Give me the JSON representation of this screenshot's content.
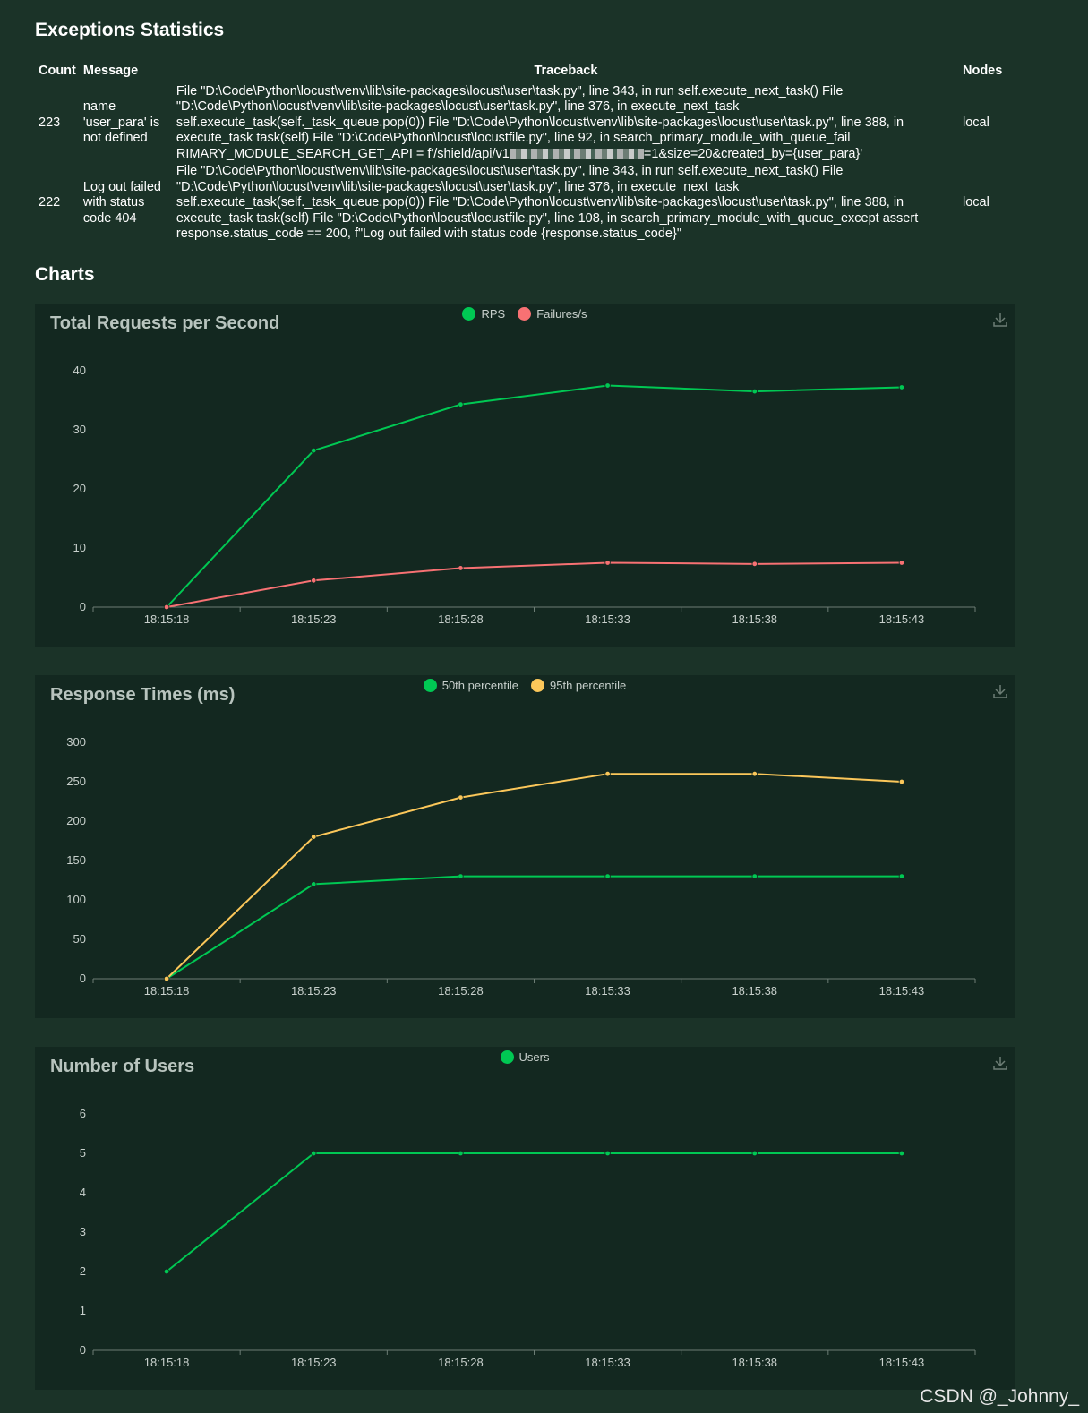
{
  "exceptions": {
    "title": "Exceptions Statistics",
    "headers": {
      "count": "Count",
      "message": "Message",
      "traceback": "Traceback",
      "nodes": "Nodes"
    },
    "rows": [
      {
        "count": "223",
        "message": "name 'user_para' is not defined",
        "traceback_pre": "File \"D:\\Code\\Python\\locust\\venv\\lib\\site-packages\\locust\\user\\task.py\", line 343, in run self.execute_next_task() File \"D:\\Code\\Python\\locust\\venv\\lib\\site-packages\\locust\\user\\task.py\", line 376, in execute_next_task self.execute_task(self._task_queue.pop(0)) File \"D:\\Code\\Python\\locust\\venv\\lib\\site-packages\\locust\\user\\task.py\", line 388, in execute_task task(self) File \"D:\\Code\\Python\\locust\\locustfile.py\", line 92, in search_primary_module_with_queue_fail RIMARY_MODULE_SEARCH_GET_API = f'/shield/api/v1",
        "traceback_post": "=1&size=20&created_by={user_para}'",
        "nodes": "local"
      },
      {
        "count": "222",
        "message": "Log out failed with status code 404",
        "traceback": "File \"D:\\Code\\Python\\locust\\venv\\lib\\site-packages\\locust\\user\\task.py\", line 343, in run self.execute_next_task() File \"D:\\Code\\Python\\locust\\venv\\lib\\site-packages\\locust\\user\\task.py\", line 376, in execute_next_task self.execute_task(self._task_queue.pop(0)) File \"D:\\Code\\Python\\locust\\venv\\lib\\site-packages\\locust\\user\\task.py\", line 388, in execute_task task(self) File \"D:\\Code\\Python\\locust\\locustfile.py\", line 108, in search_primary_module_with_queue_except assert response.status_code == 200, f\"Log out failed with status code {response.status_code}\"",
        "nodes": "local"
      }
    ]
  },
  "charts_title": "Charts",
  "colors": {
    "green": "#00c853",
    "red": "#f77173",
    "yellow": "#fbc75a",
    "axis": "#6c7d75"
  },
  "icons": {
    "download": "download-icon"
  },
  "watermark": "CSDN @_Johnny_",
  "chart_data": [
    {
      "type": "line",
      "title": "Total Requests per Second",
      "x": [
        "18:15:18",
        "18:15:23",
        "18:15:28",
        "18:15:33",
        "18:15:38",
        "18:15:43"
      ],
      "yticks": [
        0,
        10,
        20,
        30,
        40
      ],
      "ylim": [
        0,
        40
      ],
      "series": [
        {
          "name": "RPS",
          "color": "#00c853",
          "values": [
            0,
            26.5,
            34.3,
            37.5,
            36.5,
            37.2
          ]
        },
        {
          "name": "Failures/s",
          "color": "#f77173",
          "values": [
            0,
            4.5,
            6.6,
            7.5,
            7.3,
            7.5
          ]
        }
      ]
    },
    {
      "type": "line",
      "title": "Response Times (ms)",
      "x": [
        "18:15:18",
        "18:15:23",
        "18:15:28",
        "18:15:33",
        "18:15:38",
        "18:15:43"
      ],
      "yticks": [
        0,
        50,
        100,
        150,
        200,
        250,
        300
      ],
      "ylim": [
        0,
        300
      ],
      "series": [
        {
          "name": "50th percentile",
          "color": "#00c853",
          "values": [
            0,
            120,
            130,
            130,
            130,
            130
          ]
        },
        {
          "name": "95th percentile",
          "color": "#fbc75a",
          "values": [
            0,
            180,
            230,
            260,
            260,
            250
          ]
        }
      ]
    },
    {
      "type": "line",
      "title": "Number of Users",
      "x": [
        "18:15:18",
        "18:15:23",
        "18:15:28",
        "18:15:33",
        "18:15:38",
        "18:15:43"
      ],
      "yticks": [
        0,
        1,
        2,
        3,
        4,
        5,
        6
      ],
      "ylim": [
        0,
        6
      ],
      "series": [
        {
          "name": "Users",
          "color": "#00c853",
          "values": [
            2,
            5,
            5,
            5,
            5,
            5
          ]
        }
      ]
    }
  ]
}
